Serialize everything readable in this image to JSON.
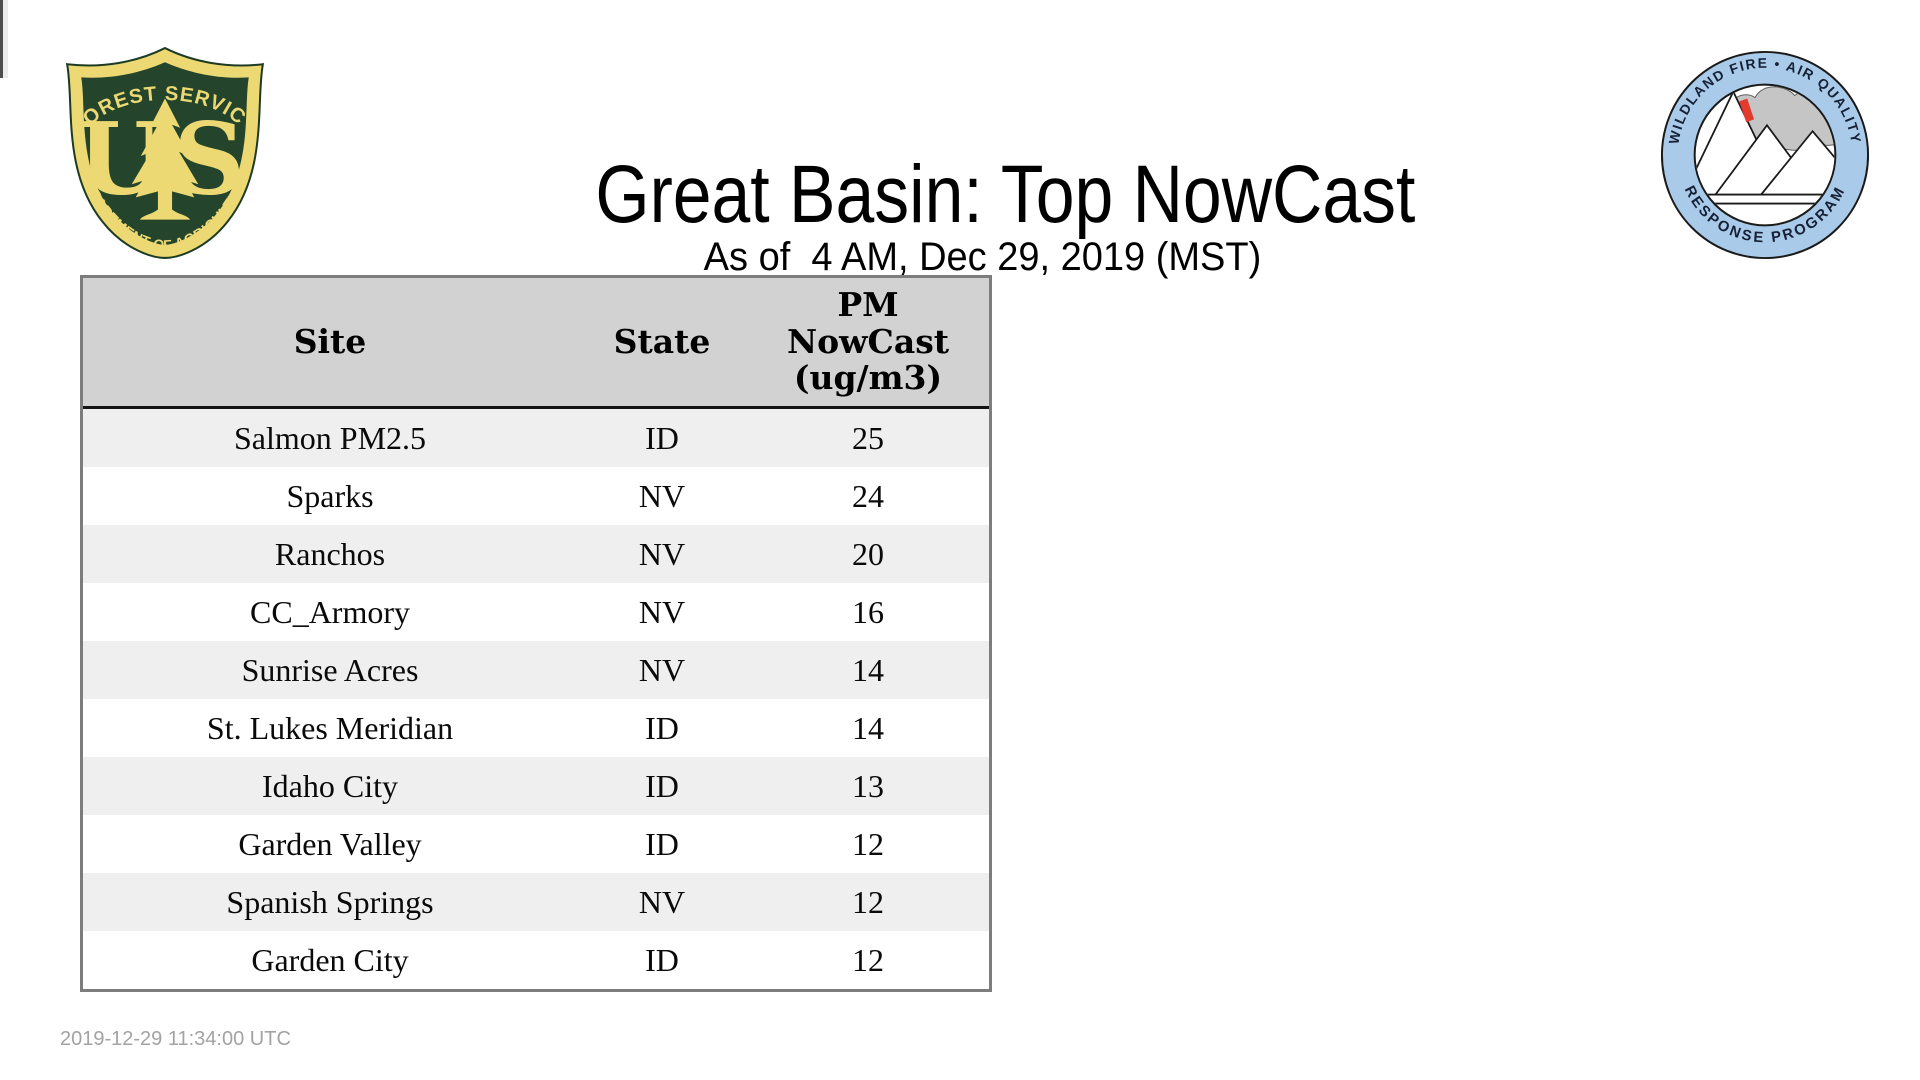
{
  "header": {
    "title": "Great Basin: Top NowCast",
    "subtitle": "As of  4 AM, Dec 29, 2019 (MST)"
  },
  "logos": {
    "usfs": {
      "alt": "US Forest Service shield",
      "arc_top": "FOREST SERVICE",
      "letter_u": "U",
      "letter_s": "S",
      "arc_bottom": "DEPARTMENT OF AGRICULTURE",
      "green_hex": "#24452b",
      "gold_hex": "#ecd974"
    },
    "wfaqrp": {
      "alt": "Wildland Fire Air Quality Response Program",
      "arc_top": "WILDLAND FIRE • AIR QUALITY",
      "arc_bottom": "RESPONSE PROGRAM",
      "ring_hex": "#a9cbe9",
      "text_hex": "#172136",
      "smoke_hex": "#c5c5c5",
      "flame_hex": "#e23b2e"
    }
  },
  "table": {
    "columns": [
      "Site",
      "State",
      "PM NowCast (ug/m3)"
    ],
    "header_bg": "#d2d2d2",
    "row_alt_bg": "#efefef",
    "border_hex": "#7d7d7d",
    "rows": [
      {
        "site": "Salmon PM2.5",
        "state": "ID",
        "pm": "25"
      },
      {
        "site": "Sparks",
        "state": "NV",
        "pm": "24"
      },
      {
        "site": "Ranchos",
        "state": "NV",
        "pm": "20"
      },
      {
        "site": "CC_Armory",
        "state": "NV",
        "pm": "16"
      },
      {
        "site": "Sunrise Acres",
        "state": "NV",
        "pm": "14"
      },
      {
        "site": "St. Lukes Meridian",
        "state": "ID",
        "pm": "14"
      },
      {
        "site": "Idaho City",
        "state": "ID",
        "pm": "13"
      },
      {
        "site": "Garden Valley",
        "state": "ID",
        "pm": "12"
      },
      {
        "site": "Spanish Springs",
        "state": "NV",
        "pm": "12"
      },
      {
        "site": "Garden City",
        "state": "ID",
        "pm": "12"
      }
    ]
  },
  "footer": {
    "timestamp": "2019-12-29 11:34:00 UTC"
  }
}
